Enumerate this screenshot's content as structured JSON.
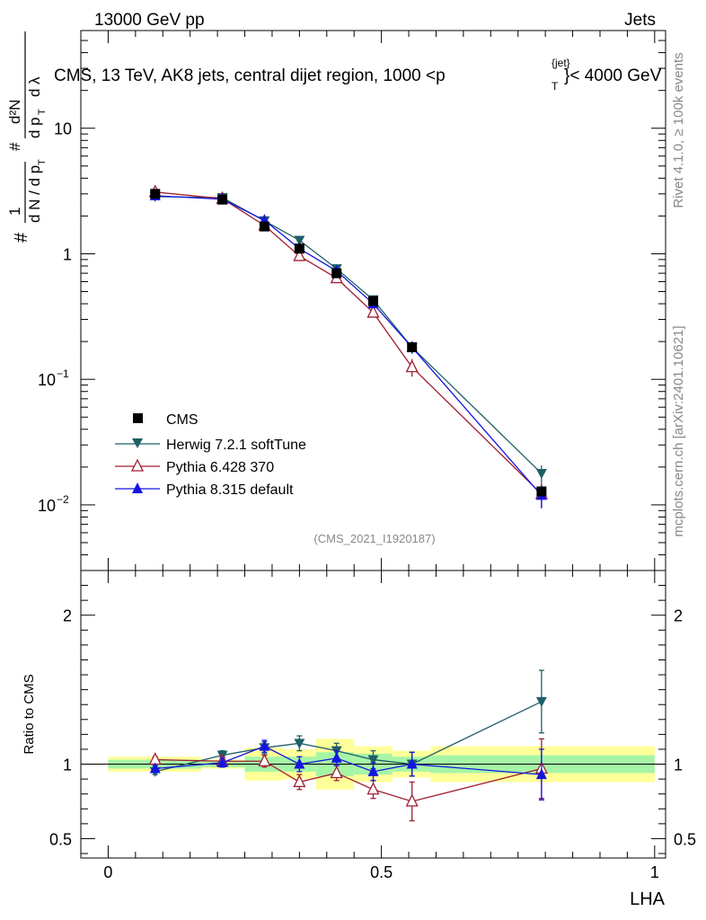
{
  "header": {
    "left": "13000 GeV pp",
    "right": "Jets",
    "title": "CMS, 13 TeV, AK8 jets, central dijet region, 1000 <p",
    "title_sup": "{jet}",
    "title_sub": "T",
    "title_end": "}< 4000 GeV"
  },
  "side_labels": {
    "rivet": "Rivet 4.1.0, ≥ 100k events",
    "mcplots": "mcplots.cern.ch [arXiv:2401.10621]"
  },
  "watermark": "(CMS_2021_I1920187)",
  "colors": {
    "CMS": "#000000",
    "Herwig": "#1f5f66",
    "Pythia6": "#a01e32",
    "Pythia8": "#1515e0",
    "band_inner": "#a6f5a6",
    "band_outer": "#ffff99"
  },
  "chart_data": [
    {
      "type": "scatter",
      "panel": "main",
      "ylabel": "1/dN/dp_T  d²N/dp_T dλ",
      "yscale": "log",
      "xlim": [
        -0.05,
        1.02
      ],
      "ylim": [
        0.003,
        60
      ],
      "y_ticklabels": [
        {
          "value": 10,
          "base": "10",
          "exp": ""
        },
        {
          "value": 1,
          "base": "1",
          "exp": ""
        },
        {
          "value": 0.1,
          "base": "10",
          "exp": "−1"
        },
        {
          "value": 0.01,
          "base": "10",
          "exp": "−2"
        }
      ],
      "x": [
        0.086,
        0.209,
        0.286,
        0.35,
        0.418,
        0.485,
        0.556,
        0.793
      ],
      "series": [
        {
          "name": "CMS",
          "marker": "square",
          "values": [
            3.0,
            2.7,
            1.65,
            1.1,
            0.7,
            0.42,
            0.18,
            0.0128
          ]
        },
        {
          "name": "Herwig 7.2.1 softTune",
          "marker": "triangle-down",
          "values": [
            2.85,
            2.8,
            1.83,
            1.28,
            0.76,
            0.43,
            0.18,
            0.0178
          ],
          "err": [
            0.08,
            0.08,
            0.06,
            0.06,
            0.04,
            0.03,
            0.02,
            0.0028
          ]
        },
        {
          "name": "Pythia 6.428 370",
          "marker": "triangle-open",
          "values": [
            3.1,
            2.75,
            1.68,
            0.96,
            0.64,
            0.34,
            0.125,
            0.0122
          ],
          "err": [
            0.08,
            0.08,
            0.06,
            0.06,
            0.04,
            0.03,
            0.02,
            0.0028
          ]
        },
        {
          "name": "Pythia 8.315 default",
          "marker": "triangle-up",
          "values": [
            2.9,
            2.72,
            1.85,
            1.1,
            0.73,
            0.4,
            0.18,
            0.0119
          ],
          "err": [
            0.08,
            0.08,
            0.06,
            0.06,
            0.04,
            0.03,
            0.02,
            0.0025
          ]
        }
      ],
      "legend": [
        "CMS",
        "Herwig 7.2.1 softTune",
        "Pythia 6.428 370",
        "Pythia 8.315 default"
      ]
    },
    {
      "type": "line",
      "panel": "ratio",
      "ylabel": "Ratio to CMS",
      "xlabel": "LHA",
      "xlim": [
        -0.05,
        1.02
      ],
      "ylim": [
        0.37,
        2.3
      ],
      "x_ticklabels": [
        {
          "value": 0,
          "label": "0"
        },
        {
          "value": 0.5,
          "label": "0.5"
        },
        {
          "value": 1,
          "label": "1"
        }
      ],
      "y_ticklabels": [
        {
          "value": 2,
          "label": "2"
        },
        {
          "value": 1,
          "label": "1"
        },
        {
          "value": 0.5,
          "label": "0.5"
        }
      ],
      "bins": [
        {
          "lo": 0.0,
          "hi": 0.17,
          "inner": 0.03,
          "outer": 0.05
        },
        {
          "lo": 0.17,
          "hi": 0.25,
          "inner": 0.02,
          "outer": 0.03
        },
        {
          "lo": 0.25,
          "hi": 0.32,
          "inner": 0.05,
          "outer": 0.11
        },
        {
          "lo": 0.32,
          "hi": 0.38,
          "inner": 0.05,
          "outer": 0.1
        },
        {
          "lo": 0.38,
          "hi": 0.45,
          "inner": 0.08,
          "outer": 0.17
        },
        {
          "lo": 0.45,
          "hi": 0.52,
          "inner": 0.07,
          "outer": 0.12
        },
        {
          "lo": 0.52,
          "hi": 0.59,
          "inner": 0.05,
          "outer": 0.09
        },
        {
          "lo": 0.59,
          "hi": 1.0,
          "inner": 0.06,
          "outer": 0.12
        }
      ],
      "series": [
        {
          "name": "Herwig 7.2.1 softTune",
          "values": [
            0.95,
            1.06,
            1.11,
            1.14,
            1.09,
            1.03,
            1.0,
            1.42
          ],
          "err": [
            0.02,
            0.03,
            0.04,
            0.05,
            0.05,
            0.06,
            0.08,
            0.21
          ]
        },
        {
          "name": "Pythia 6.428 370",
          "values": [
            1.03,
            1.02,
            1.02,
            0.88,
            0.94,
            0.83,
            0.75,
            0.97
          ],
          "err": [
            0.02,
            0.03,
            0.04,
            0.05,
            0.05,
            0.06,
            0.13,
            0.2
          ]
        },
        {
          "name": "Pythia 8.315 default",
          "values": [
            0.97,
            1.01,
            1.12,
            1.0,
            1.04,
            0.95,
            1.0,
            0.93
          ],
          "err": [
            0.02,
            0.03,
            0.04,
            0.05,
            0.05,
            0.06,
            0.08,
            0.17
          ]
        }
      ]
    }
  ]
}
